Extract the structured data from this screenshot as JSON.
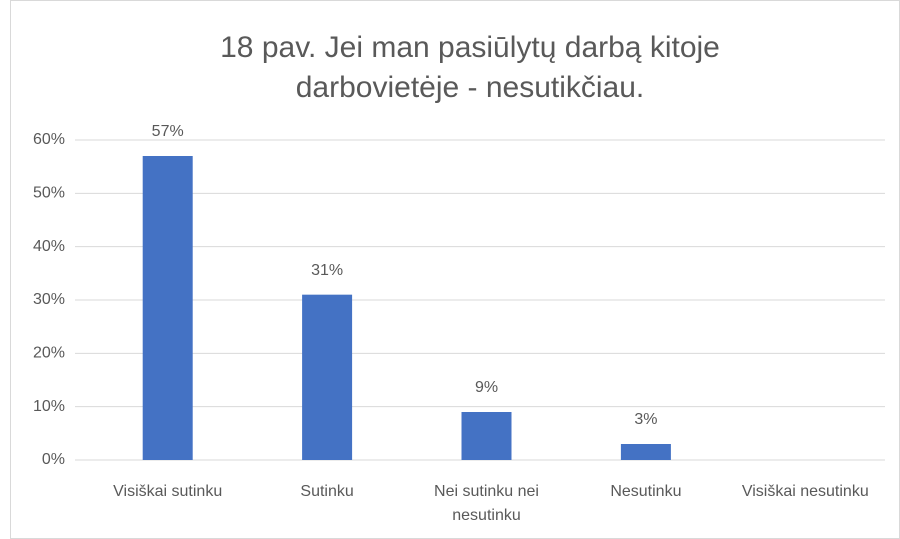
{
  "chart_data": {
    "type": "bar",
    "title": "18 pav. Jei man pasiūlytų darbą kitoje darbovietėje - nesutikčiau.",
    "categories": [
      "Visiškai sutinku",
      "Sutinku",
      "Nei sutinku nei nesutinku",
      "Nesutinku",
      "Visiškai nesutinku"
    ],
    "values": [
      57,
      31,
      9,
      3,
      null
    ],
    "value_labels": [
      "57%",
      "31%",
      "9%",
      "3%",
      null
    ],
    "color": "#4472c4",
    "ylim": [
      0,
      60
    ],
    "yticks": [
      {
        "value": 0,
        "label": "0%"
      },
      {
        "value": 10,
        "label": "10%"
      },
      {
        "value": 20,
        "label": "20%"
      },
      {
        "value": 30,
        "label": "30%"
      },
      {
        "value": 40,
        "label": "40%"
      },
      {
        "value": 50,
        "label": "50%"
      },
      {
        "value": 60,
        "label": "60%"
      }
    ],
    "grid": true
  }
}
